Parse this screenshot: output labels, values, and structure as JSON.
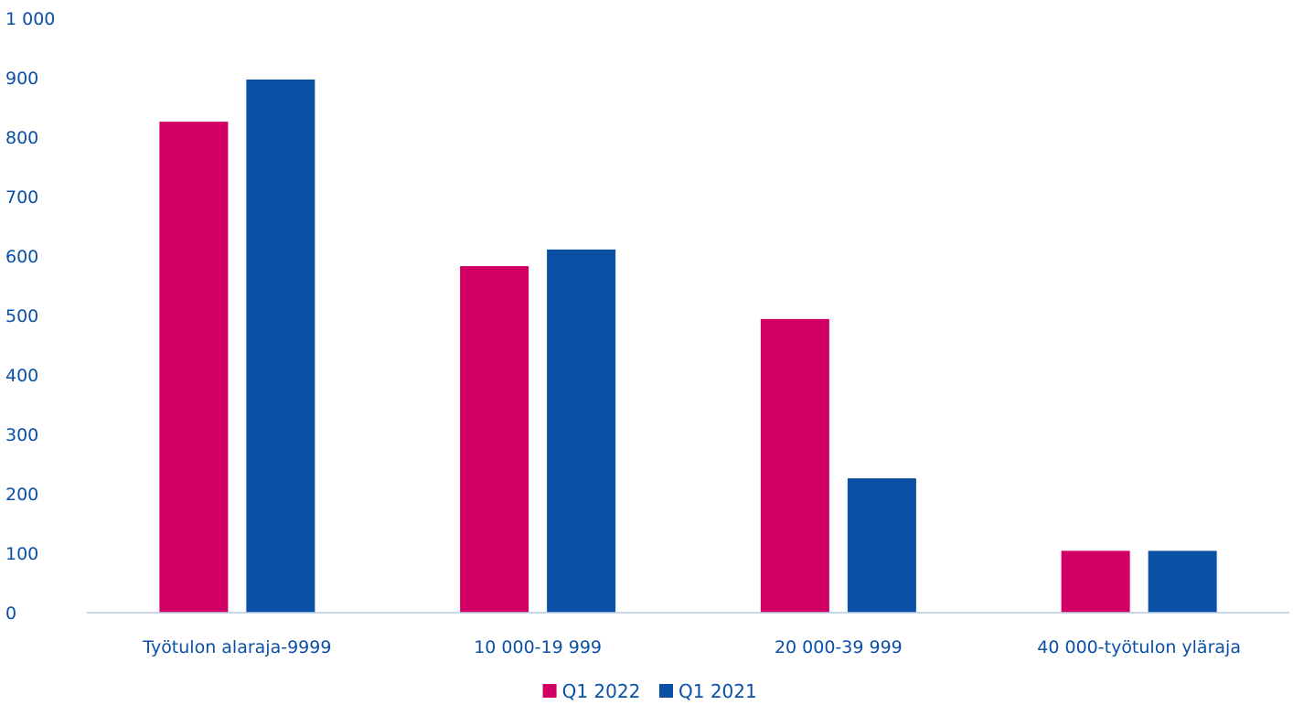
{
  "chart_data": {
    "type": "bar",
    "title": "",
    "xlabel": "",
    "ylabel": "",
    "categories": [
      "Työtulon alaraja-9999",
      "10 000-19 999",
      "20 000-39 999",
      "40 000-työtulon yläraja"
    ],
    "series": [
      {
        "name": "Q1 2022",
        "color": "#d20064",
        "values": [
          826,
          583,
          494,
          104
        ]
      },
      {
        "name": "Q1 2021",
        "color": "#0a50a5",
        "values": [
          897,
          611,
          226,
          104
        ]
      }
    ],
    "ylim": [
      0,
      1000
    ],
    "yticks": [
      0,
      100,
      200,
      300,
      400,
      500,
      600,
      700,
      800,
      900,
      1000
    ],
    "ytick_labels": [
      "0",
      "100",
      "200",
      "300",
      "400",
      "500",
      "600",
      "700",
      "800",
      "900",
      "1 000"
    ],
    "grid": false,
    "legend_position": "bottom",
    "text_color": "#0a50a5",
    "axis_line_color": "#b4c8e6"
  }
}
